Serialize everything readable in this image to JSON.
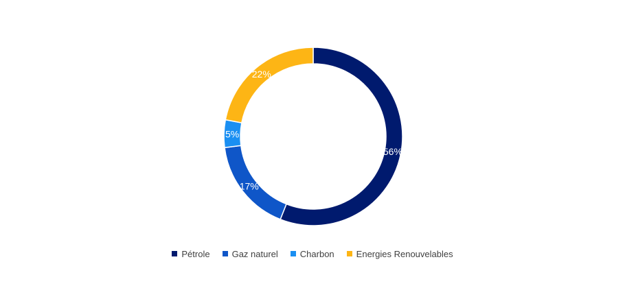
{
  "chart_data": {
    "type": "pie",
    "variant": "donut",
    "categories": [
      "Pétrole",
      "Gaz naturel",
      "Charbon",
      "Energies Renouvelables"
    ],
    "values": [
      56,
      17,
      5,
      22
    ],
    "labels": [
      "56%",
      "17%",
      "5%",
      "22%"
    ],
    "colors": [
      "#001a6e",
      "#0f56c8",
      "#1a8ff2",
      "#fdb515"
    ],
    "legend": {
      "position": "bottom",
      "items": [
        {
          "label": "Pétrole",
          "color": "#001a6e"
        },
        {
          "label": "Gaz naturel",
          "color": "#0f56c8"
        },
        {
          "label": "Charbon",
          "color": "#1a8ff2"
        },
        {
          "label": "Energies Renouvelables",
          "color": "#fdb515"
        }
      ]
    }
  }
}
